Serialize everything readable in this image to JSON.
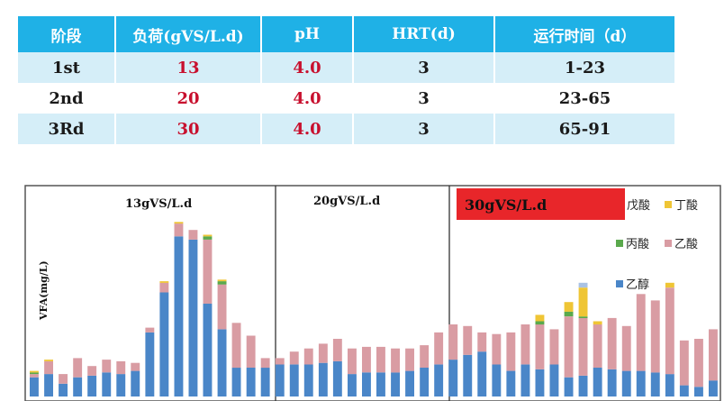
{
  "table": {
    "headers": [
      "阶段",
      "负荷(gVS/L.d)",
      "pH",
      "HRT(d)",
      "运行时间（d）"
    ],
    "rows": [
      [
        "1st",
        "13",
        "4.0",
        "3",
        "1-23"
      ],
      [
        "2nd",
        "20",
        "4.0",
        "3",
        "23-65"
      ],
      [
        "3Rd",
        "30",
        "4.0",
        "3",
        "65-91"
      ]
    ]
  },
  "colors": {
    "header_bg": "#1fb1e6",
    "stage3_highlight": "#e8262a",
    "ethanol": "#4a86c8",
    "acetic": "#d99ca3",
    "propionic": "#5aa94c",
    "butyric": "#efc535",
    "valeric": "#a9c2e4"
  },
  "chart_data": {
    "type": "bar",
    "stacked": true,
    "ylabel": "VFA(mg/L)",
    "stages": [
      {
        "label": "13gVS/L.d",
        "start_index": 0,
        "end_index": 16
      },
      {
        "label": "20gVS/L.d",
        "start_index": 17,
        "end_index": 30
      },
      {
        "label": "30gVS/L.d",
        "start_index": 31,
        "end_index": 47
      }
    ],
    "series": [
      {
        "name": "乙醇",
        "color": "#4a86c8",
        "values": [
          12,
          14,
          8,
          12,
          13,
          15,
          14,
          16,
          40,
          65,
          100,
          98,
          58,
          42,
          18,
          18,
          18,
          20,
          20,
          20,
          21,
          22,
          14,
          15,
          15,
          15,
          16,
          18,
          20,
          23,
          26,
          28,
          20,
          16,
          20,
          17,
          20,
          12,
          13,
          18,
          17,
          16,
          16,
          15,
          14,
          7,
          6,
          10
        ]
      },
      {
        "name": "乙酸",
        "color": "#d99ca3",
        "values": [
          2,
          8,
          6,
          12,
          6,
          8,
          8,
          5,
          3,
          6,
          8,
          6,
          40,
          28,
          28,
          20,
          6,
          4,
          8,
          10,
          12,
          14,
          16,
          16,
          16,
          15,
          14,
          14,
          20,
          22,
          18,
          12,
          19,
          24,
          25,
          28,
          22,
          38,
          36,
          27,
          32,
          28,
          48,
          45,
          54,
          28,
          30,
          32
        ]
      },
      {
        "name": "丙酸",
        "color": "#5aa94c",
        "values": [
          1,
          0,
          0,
          0,
          0,
          0,
          0,
          0,
          0,
          0,
          0,
          0,
          2,
          2,
          0,
          0,
          0,
          0,
          0,
          0,
          0,
          0,
          0,
          0,
          0,
          0,
          0,
          0,
          0,
          0,
          0,
          0,
          0,
          0,
          0,
          2,
          0,
          3,
          1,
          0,
          0,
          0,
          0,
          0,
          0,
          0,
          0,
          0
        ]
      },
      {
        "name": "丁酸",
        "color": "#efc535",
        "values": [
          1,
          1,
          0,
          0,
          0,
          0,
          0,
          0,
          0,
          1,
          1,
          0,
          1,
          1,
          0,
          0,
          0,
          0,
          0,
          0,
          0,
          0,
          0,
          0,
          0,
          0,
          0,
          0,
          0,
          0,
          0,
          0,
          0,
          0,
          0,
          4,
          0,
          6,
          18,
          2,
          0,
          0,
          0,
          0,
          3,
          0,
          0,
          0
        ]
      },
      {
        "name": "戊酸",
        "color": "#a9c2e4",
        "values": [
          0,
          0,
          0,
          0,
          0,
          0,
          0,
          0,
          0,
          0,
          0,
          0,
          0,
          0,
          0,
          0,
          0,
          0,
          0,
          0,
          0,
          0,
          0,
          0,
          0,
          0,
          0,
          0,
          0,
          0,
          0,
          0,
          0,
          0,
          0,
          0,
          0,
          0,
          3,
          0,
          0,
          0,
          0,
          0,
          0,
          0,
          0,
          0
        ]
      }
    ],
    "legend": {
      "placement": "top-right",
      "entries": [
        "戊酸",
        "丁酸",
        "丙酸",
        "乙酸",
        "乙醇"
      ]
    },
    "ylim": [
      0,
      130
    ]
  }
}
